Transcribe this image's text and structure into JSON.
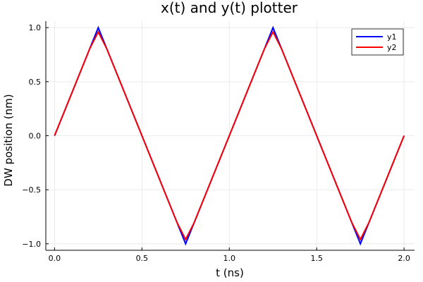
{
  "chart_data": {
    "type": "line",
    "title": "x(t) and y(t) plotter",
    "xlabel": "t (ns)",
    "ylabel": "DW position (nm)",
    "xlim": [
      -0.05,
      2.06
    ],
    "ylim": [
      -1.06,
      1.06
    ],
    "xticks": [
      0.0,
      0.5,
      1.0,
      1.5,
      2.0
    ],
    "xtick_labels": [
      "0.0",
      "0.5",
      "1.0",
      "1.5",
      "2.0"
    ],
    "yticks": [
      -1.0,
      -0.5,
      0.0,
      0.5,
      1.0
    ],
    "ytick_labels": [
      "−1.0",
      "−0.5",
      "0.0",
      "0.5",
      "1.0"
    ],
    "grid": true,
    "legend_position": "top-right",
    "series": [
      {
        "name": "y1",
        "color": "#0000ff",
        "x": [
          0.0,
          0.25,
          0.75,
          1.25,
          1.75,
          2.0
        ],
        "y": [
          0.0,
          1.0,
          -1.0,
          1.0,
          -1.0,
          0.0
        ]
      },
      {
        "name": "y2",
        "color": "#ff0000",
        "x": [
          0.0,
          0.2,
          0.25,
          0.3,
          0.7,
          0.75,
          0.8,
          1.2,
          1.25,
          1.3,
          1.7,
          1.75,
          1.8,
          2.0
        ],
        "y": [
          0.0,
          0.8,
          0.96,
          0.8,
          -0.8,
          -0.96,
          -0.8,
          0.8,
          0.96,
          0.8,
          -0.8,
          -0.96,
          -0.8,
          0.0
        ]
      }
    ]
  }
}
